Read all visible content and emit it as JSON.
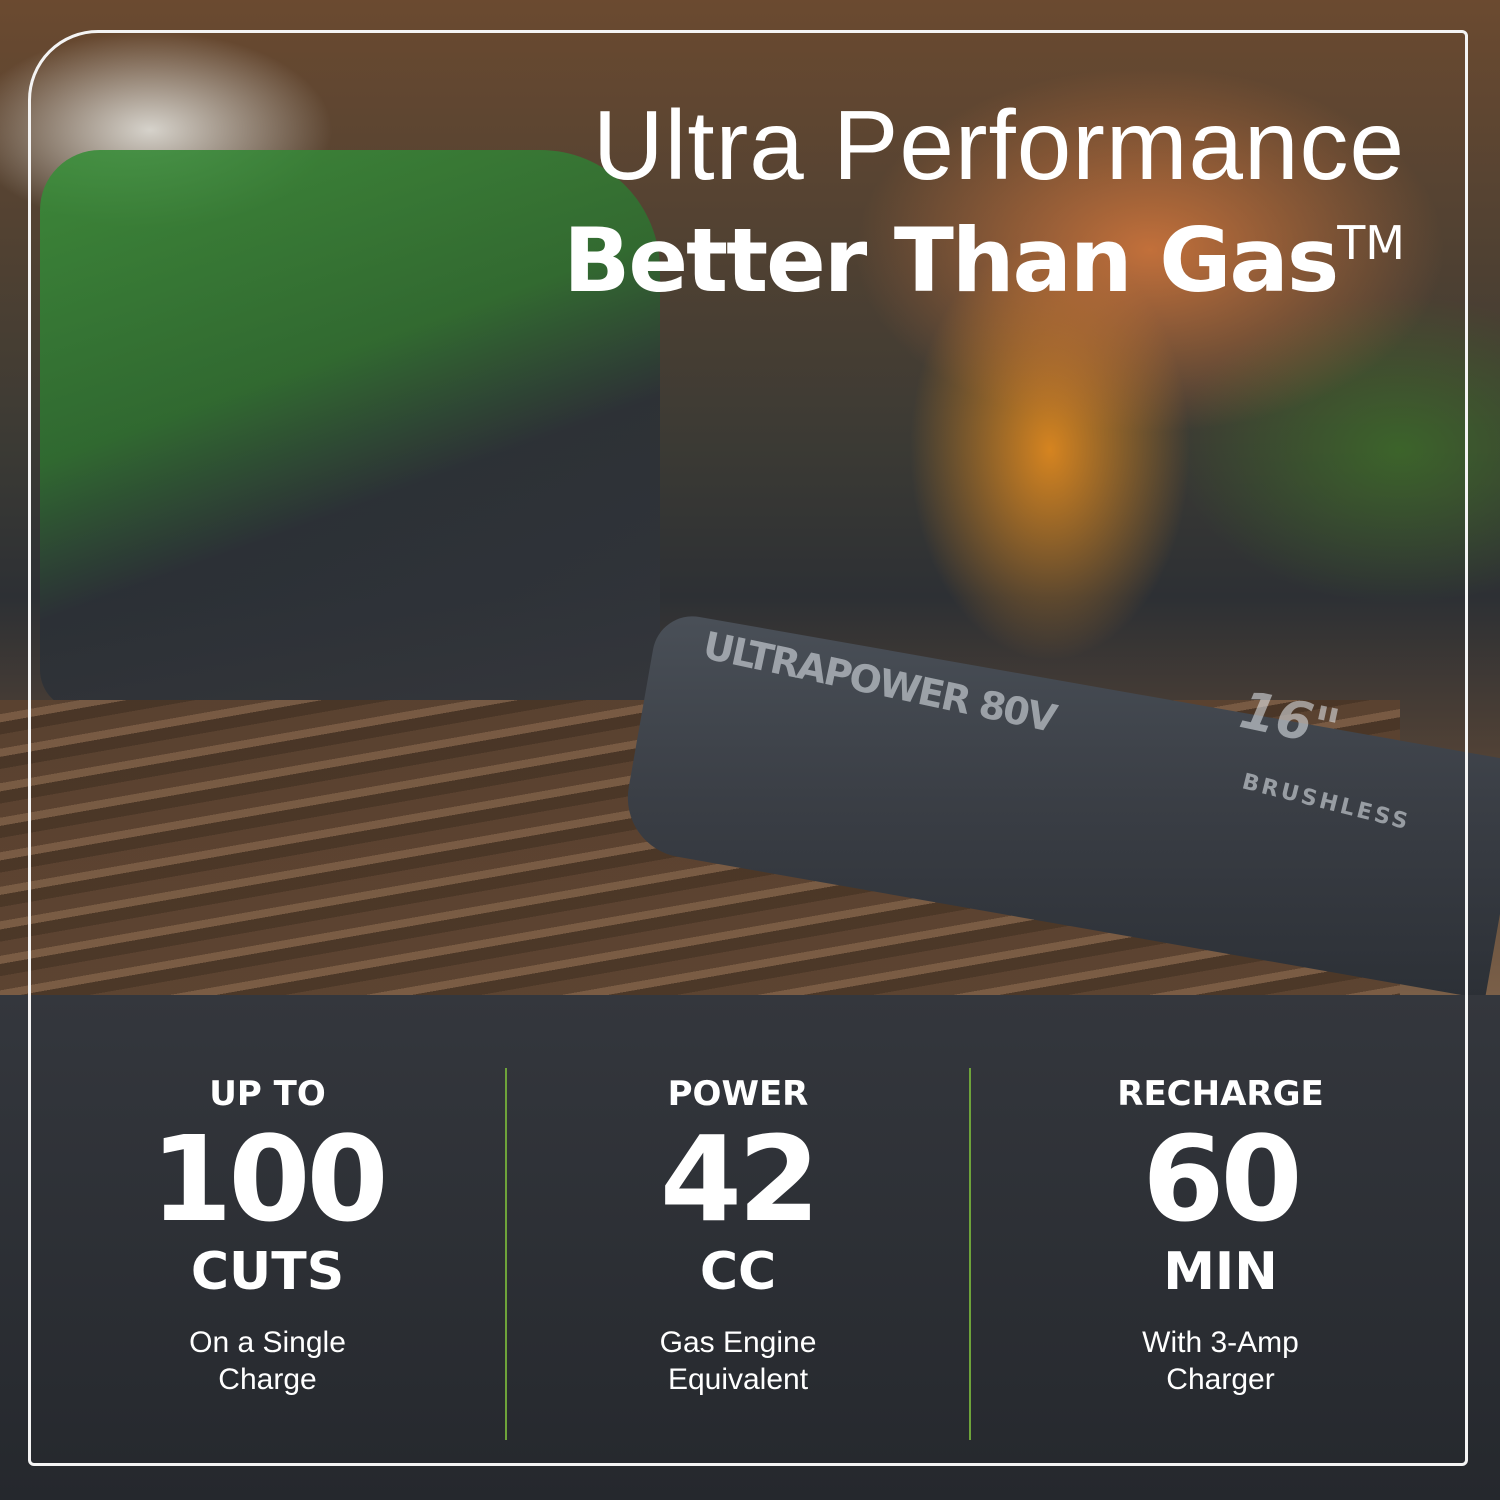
{
  "headline": {
    "line1": "Ultra Performance",
    "line2": "Better Than Gas",
    "trademark": "TM"
  },
  "product_markings": {
    "bar_brand": "ULTRAPOWER 80V",
    "bar_length": "16\"",
    "motor": "BRUSHLESS"
  },
  "stats": [
    {
      "pre": "UP TO",
      "value": "100",
      "unit": "CUTS",
      "description": "On a Single\nCharge"
    },
    {
      "pre": "POWER",
      "value": "42",
      "unit": "CC",
      "description": "Gas Engine\nEquivalent"
    },
    {
      "pre": "RECHARGE",
      "value": "60",
      "unit": "MIN",
      "description": "With 3-Amp\nCharger"
    }
  ],
  "colors": {
    "panel": "#2a2d32",
    "divider": "#6ea33a",
    "text": "#ffffff"
  }
}
